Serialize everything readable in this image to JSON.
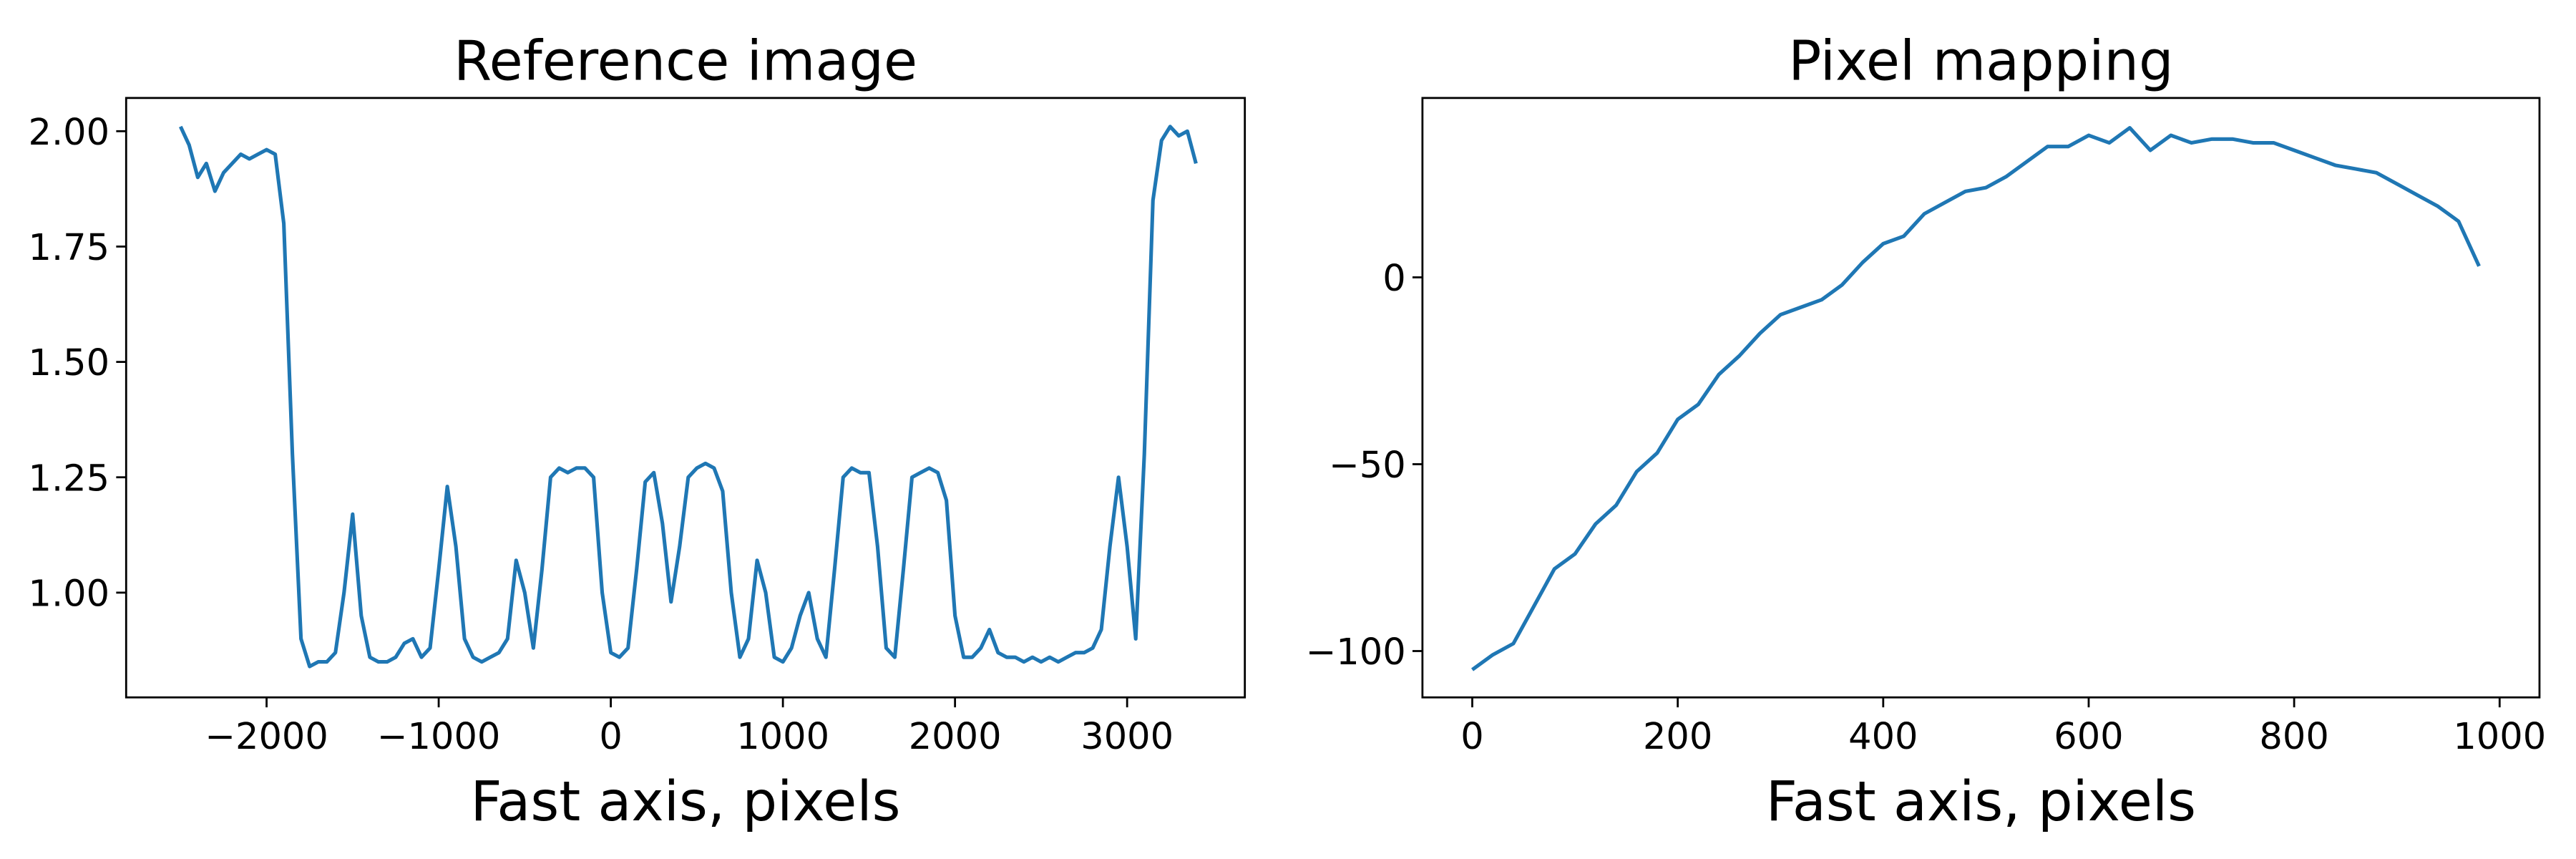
{
  "chart_data": [
    {
      "type": "line",
      "title": "Reference image",
      "xlabel": "Fast axis, pixels",
      "xlim": [
        -2816,
        3684
      ],
      "ylim": [
        0.773,
        2.072
      ],
      "xticks": [
        {
          "value": -2000,
          "label": "−2000"
        },
        {
          "value": -1000,
          "label": "−1000"
        },
        0,
        1000,
        2000,
        3000
      ],
      "yticks": [
        {
          "value": 1.0,
          "label": "1.00"
        },
        {
          "value": 1.25,
          "label": "1.25"
        },
        {
          "value": 1.5,
          "label": "1.50"
        },
        {
          "value": 1.75,
          "label": "1.75"
        },
        {
          "value": 2.0,
          "label": "2.00"
        }
      ],
      "x": [
        -2500,
        -2450,
        -2400,
        -2350,
        -2300,
        -2250,
        -2200,
        -2150,
        -2100,
        -2050,
        -2000,
        -1950,
        -1900,
        -1850,
        -1800,
        -1750,
        -1700,
        -1650,
        -1600,
        -1550,
        -1500,
        -1450,
        -1400,
        -1350,
        -1300,
        -1250,
        -1200,
        -1150,
        -1100,
        -1050,
        -1000,
        -950,
        -900,
        -850,
        -800,
        -750,
        -700,
        -650,
        -600,
        -550,
        -500,
        -450,
        -400,
        -350,
        -300,
        -250,
        -200,
        -150,
        -100,
        -50,
        0,
        50,
        100,
        150,
        200,
        250,
        300,
        350,
        400,
        450,
        500,
        550,
        600,
        650,
        700,
        750,
        800,
        850,
        900,
        950,
        1000,
        1050,
        1100,
        1150,
        1200,
        1250,
        1300,
        1350,
        1400,
        1450,
        1500,
        1550,
        1600,
        1650,
        1700,
        1750,
        1800,
        1850,
        1900,
        1950,
        2000,
        2050,
        2100,
        2150,
        2200,
        2250,
        2300,
        2350,
        2400,
        2450,
        2500,
        2550,
        2600,
        2650,
        2700,
        2750,
        2800,
        2850,
        2900,
        2950,
        3000,
        3050,
        3100,
        3150,
        3200,
        3250,
        3300,
        3350,
        3400
      ],
      "series": [
        {
          "color": "#1f77b4",
          "values": [
            2.01,
            1.97,
            1.9,
            1.93,
            1.87,
            1.91,
            1.93,
            1.95,
            1.94,
            1.95,
            1.96,
            1.95,
            1.8,
            1.3,
            0.9,
            0.84,
            0.85,
            0.85,
            0.87,
            1.0,
            1.17,
            0.95,
            0.86,
            0.85,
            0.85,
            0.86,
            0.89,
            0.9,
            0.86,
            0.88,
            1.05,
            1.23,
            1.1,
            0.9,
            0.86,
            0.85,
            0.86,
            0.87,
            0.9,
            1.07,
            1.0,
            0.88,
            1.05,
            1.25,
            1.27,
            1.26,
            1.27,
            1.27,
            1.25,
            1.0,
            0.87,
            0.86,
            0.88,
            1.05,
            1.24,
            1.26,
            1.15,
            0.98,
            1.1,
            1.25,
            1.27,
            1.28,
            1.27,
            1.22,
            1.0,
            0.86,
            0.9,
            1.07,
            1.0,
            0.86,
            0.85,
            0.88,
            0.95,
            1.0,
            0.9,
            0.86,
            1.05,
            1.25,
            1.27,
            1.26,
            1.26,
            1.1,
            0.88,
            0.86,
            1.05,
            1.25,
            1.26,
            1.27,
            1.26,
            1.2,
            0.95,
            0.86,
            0.86,
            0.88,
            0.92,
            0.87,
            0.86,
            0.86,
            0.85,
            0.86,
            0.85,
            0.86,
            0.85,
            0.86,
            0.87,
            0.87,
            0.88,
            0.92,
            1.1,
            1.25,
            1.1,
            0.9,
            1.3,
            1.85,
            1.98,
            2.01,
            1.99,
            2.0,
            1.93
          ]
        }
      ]
    },
    {
      "type": "line",
      "title": "Pixel mapping",
      "xlabel": "Fast axis, pixels",
      "xlim": [
        -48.5,
        1038.8
      ],
      "ylim": [
        -112.4,
        48
      ],
      "xticks": [
        0,
        200,
        400,
        600,
        800,
        1000
      ],
      "yticks": [
        {
          "value": -100,
          "label": "−100"
        },
        {
          "value": -50,
          "label": "−50"
        },
        0
      ],
      "x": [
        0,
        20,
        40,
        60,
        80,
        100,
        120,
        140,
        160,
        180,
        200,
        220,
        240,
        260,
        280,
        300,
        320,
        340,
        360,
        380,
        400,
        420,
        440,
        460,
        480,
        500,
        520,
        540,
        560,
        580,
        600,
        620,
        640,
        660,
        680,
        700,
        720,
        740,
        760,
        780,
        800,
        820,
        840,
        860,
        880,
        900,
        920,
        940,
        960,
        980
      ],
      "series": [
        {
          "color": "#1f77b4",
          "values": [
            -105,
            -101,
            -98,
            -88,
            -78,
            -74,
            -66,
            -61,
            -52,
            -47,
            -38,
            -34,
            -26,
            -21,
            -15,
            -10,
            -8,
            -6,
            -2,
            4,
            9,
            11,
            17,
            20,
            23,
            24,
            27,
            31,
            35,
            35,
            38,
            36,
            40,
            34,
            38,
            36,
            37,
            37,
            36,
            36,
            34,
            32,
            30,
            29,
            28,
            25,
            22,
            19,
            15,
            3
          ]
        }
      ]
    }
  ]
}
